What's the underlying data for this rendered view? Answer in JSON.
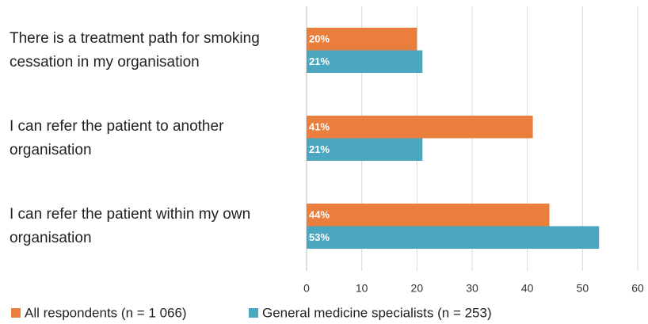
{
  "chart_data": {
    "type": "hbar",
    "categories": [
      "There is a treatment path for smoking cessation in my organisation",
      "I can refer the patient to another organisation",
      "I can refer the patient within my own organisation"
    ],
    "series": [
      {
        "name": "All respondents (n = 1 066)",
        "color": "#e97e3d",
        "values": [
          20,
          41,
          44
        ],
        "value_labels": [
          "20%",
          "41%",
          "44%"
        ]
      },
      {
        "name": "General medicine specialists (n = 253)",
        "color": "#4ba7c0",
        "values": [
          21,
          21,
          53
        ],
        "value_labels": [
          "21%",
          "21%",
          "53%"
        ]
      }
    ],
    "xlim": [
      0,
      60
    ],
    "xticks": [
      0,
      10,
      20,
      30,
      40,
      50,
      60
    ],
    "grid": true,
    "legend": "bottom"
  }
}
